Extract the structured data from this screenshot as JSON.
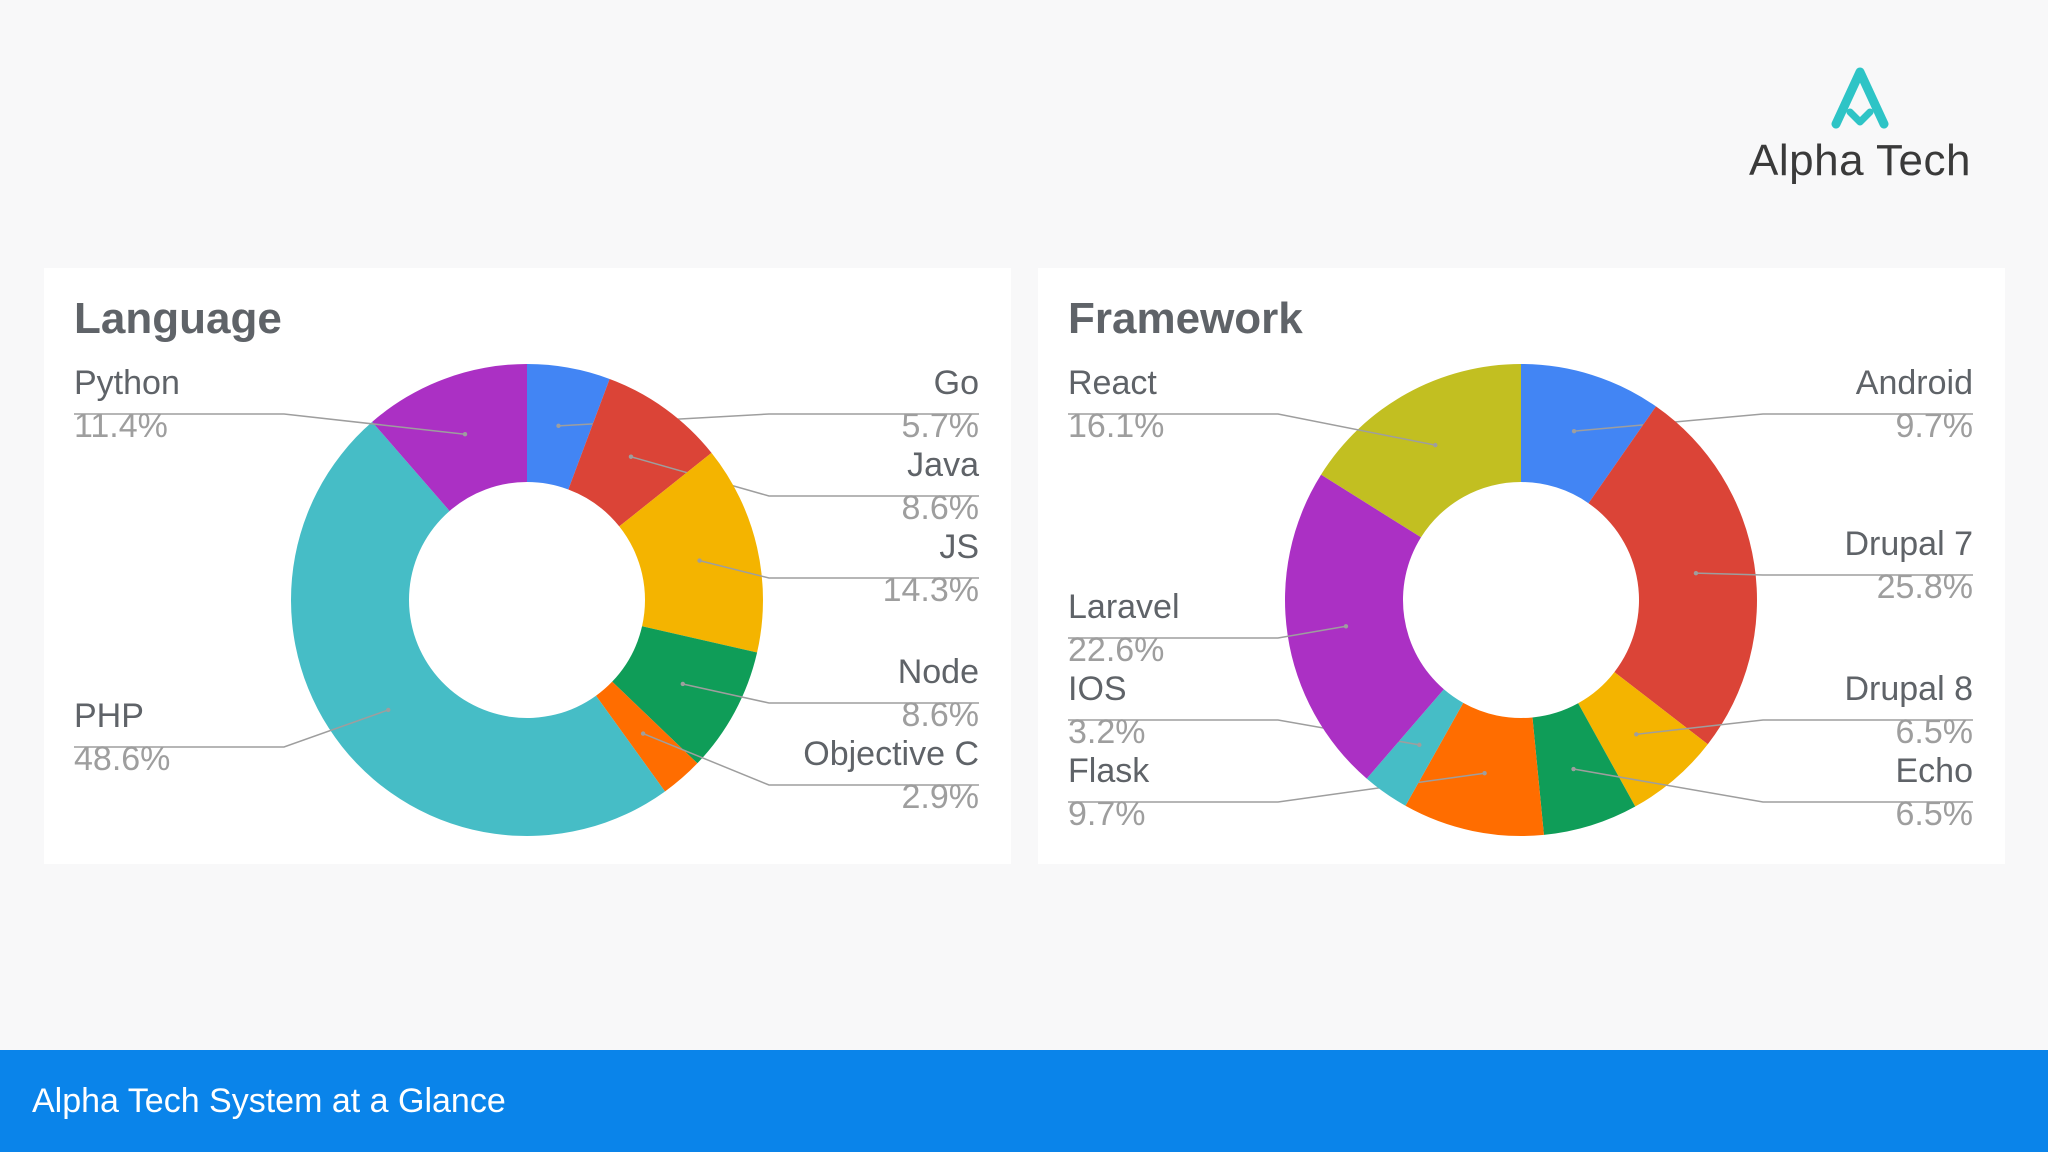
{
  "logo": {
    "text": "Alpha Tech",
    "color": "#2ec4c6"
  },
  "footer": {
    "text": "Alpha Tech System at a Glance",
    "color": "#0a84ea"
  },
  "chart_data": [
    {
      "type": "pie",
      "donut": true,
      "title": "Language",
      "categories": [
        "Go",
        "Java",
        "JS",
        "Node",
        "Objective C",
        "PHP",
        "Python"
      ],
      "labels": [
        "5.7%",
        "8.6%",
        "14.3%",
        "8.6%",
        "2.9%",
        "48.6%",
        "11.4%"
      ],
      "values": [
        5.7,
        8.6,
        14.3,
        8.6,
        2.9,
        48.6,
        11.4
      ],
      "colors": [
        "#4285f4",
        "#db4437",
        "#f4b400",
        "#0f9d58",
        "#ff6d00",
        "#46bdc6",
        "#ab30c4"
      ],
      "legend": "labels beside slices"
    },
    {
      "type": "pie",
      "donut": true,
      "title": "Framework",
      "categories": [
        "Android",
        "Drupal 7",
        "Drupal 8",
        "Echo",
        "Flask",
        "IOS",
        "Laravel",
        "React"
      ],
      "labels": [
        "9.7%",
        "25.8%",
        "6.5%",
        "6.5%",
        "9.7%",
        "3.2%",
        "22.6%",
        "16.1%"
      ],
      "values": [
        9.7,
        25.8,
        6.5,
        6.5,
        9.7,
        3.2,
        22.6,
        16.1
      ],
      "colors": [
        "#4285f4",
        "#db4437",
        "#f4b400",
        "#0f9d58",
        "#ff6d00",
        "#46bdc6",
        "#ab30c4",
        "#c2bf21"
      ],
      "legend": "labels beside slices"
    }
  ]
}
